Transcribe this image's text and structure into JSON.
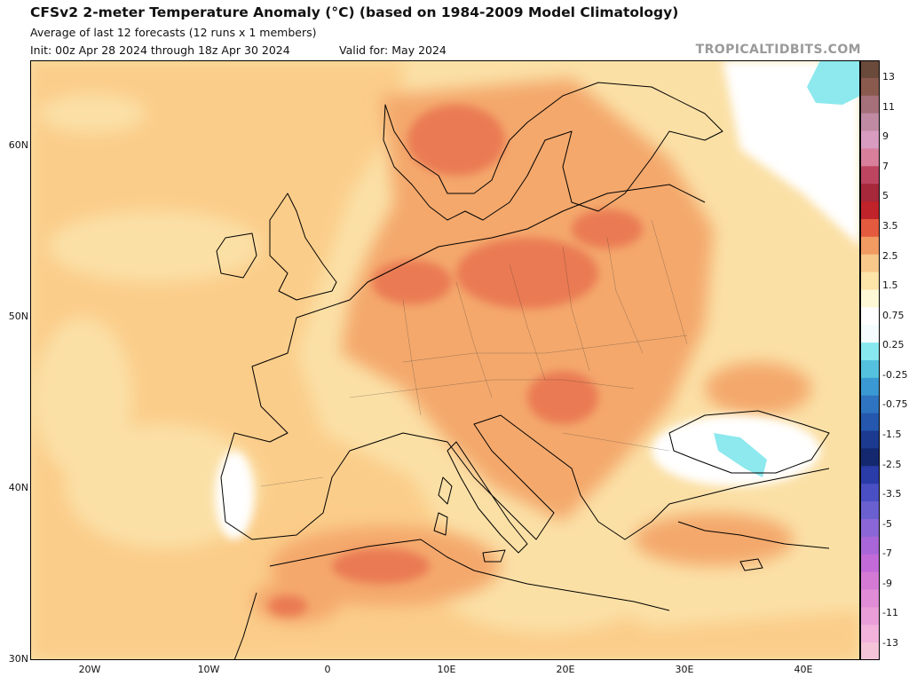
{
  "header": {
    "title": "CFSv2 2-meter Temperature Anomaly (°C) (based on 1984-2009 Model Climatology)",
    "subtitle": "Average of last 12 forecasts (12 runs x 1 members)",
    "init": "Init: 00z Apr 28 2024 through 18z Apr 30 2024",
    "valid": "Valid for: May 2024",
    "credit": "TROPICALTIDBITS.COM"
  },
  "map": {
    "region": "Europe",
    "lat_labels": [
      "60N",
      "50N",
      "40N",
      "30N"
    ],
    "lon_labels": [
      "20W",
      "10W",
      "0",
      "10E",
      "20E",
      "30E",
      "40E"
    ],
    "colors": {
      "background_anomaly": "#fbe0a6",
      "weak_positive": "#fbcd8a",
      "moderate_positive": "#f4a86c",
      "strong_positive": "#ea7a52",
      "near_zero": "#ffffff",
      "weak_negative": "#8de9ee",
      "coastline": "#000000"
    }
  },
  "colorbar": {
    "labels": [
      "13",
      "11",
      "9",
      "7",
      "5",
      "3.5",
      "2.5",
      "1.5",
      "0.75",
      "0.25",
      "-0.25",
      "-0.75",
      "-1.5",
      "-2.5",
      "-3.5",
      "-5",
      "-7",
      "-9",
      "-11",
      "-13"
    ],
    "colors": [
      "#6a4a3a",
      "#8a5a4e",
      "#a57079",
      "#c08aa3",
      "#d79cbf",
      "#d77f9b",
      "#bd4560",
      "#a6283a",
      "#c0232a",
      "#e35a3e",
      "#f19a61",
      "#f8c78a",
      "#fde4a8",
      "#fff8d6",
      "#ffffff",
      "#f4fcfe",
      "#88e8f0",
      "#54c2de",
      "#3a99d2",
      "#2e74c1",
      "#2457ad",
      "#1c3a8f",
      "#14286f",
      "#2a3ca8",
      "#4a4fc4",
      "#6a60d0",
      "#8a66d6",
      "#a866d8",
      "#c26ad8",
      "#d47ad4",
      "#e08cd6",
      "#ea9ed8",
      "#f2b2dc",
      "#f6c4d8"
    ]
  }
}
